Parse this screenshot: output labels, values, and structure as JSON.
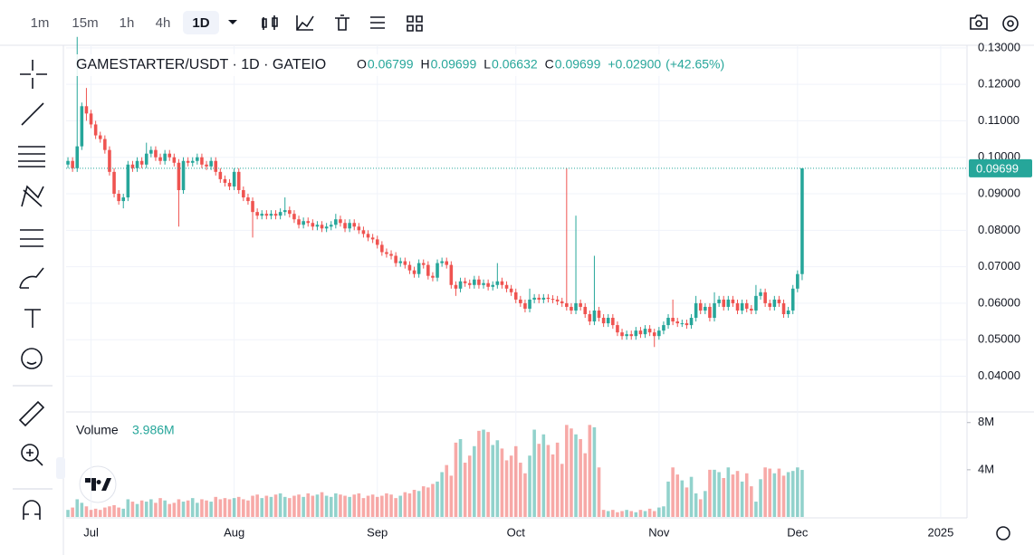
{
  "toolbar": {
    "intervals": [
      "1m",
      "15m",
      "1h",
      "4h",
      "1D"
    ]
  },
  "chart_data": {
    "type": "candlestick",
    "title": "GAMESTARTER/USDT · 1D · GATEIO",
    "ohlc_letters": [
      "O",
      "H",
      "L",
      "C"
    ],
    "change": "+0.02900",
    "change_pct": "(+42.65%)",
    "up_color": "#26a69a",
    "down_color": "#ef5350",
    "xlim": [
      -0.4,
      194.7
    ],
    "xticks": [
      {
        "value": 5,
        "label": "Jul"
      },
      {
        "value": 36,
        "label": "Aug"
      },
      {
        "value": 67,
        "label": "Sep"
      },
      {
        "value": 97,
        "label": "Oct"
      },
      {
        "value": 128,
        "label": "Nov"
      },
      {
        "value": 158,
        "label": "Dec"
      },
      {
        "value": 189,
        "label": "2025"
      }
    ],
    "ylim": [
      0.0302,
      0.1307
    ],
    "yticks": [
      {
        "value": 0.04,
        "label": "0.04000"
      },
      {
        "value": 0.05,
        "label": "0.05000"
      },
      {
        "value": 0.06,
        "label": "0.06000"
      },
      {
        "value": 0.07,
        "label": "0.07000"
      },
      {
        "value": 0.08,
        "label": "0.08000"
      },
      {
        "value": 0.09,
        "label": "0.09000"
      },
      {
        "value": 0.1,
        "label": "0.10000"
      },
      {
        "value": 0.11,
        "label": "0.11000"
      },
      {
        "value": 0.12,
        "label": "0.12000"
      },
      {
        "value": 0.13,
        "label": "0.13000"
      }
    ],
    "grid": true,
    "open": [
      0.098,
      0.099,
      0.097,
      0.103,
      0.114,
      0.112,
      0.109,
      0.106,
      0.105,
      0.102,
      0.096,
      0.09,
      0.088,
      0.089,
      0.098,
      0.097,
      0.099,
      0.098,
      0.101,
      0.102,
      0.1,
      0.099,
      0.101,
      0.1,
      0.0985,
      0.091,
      0.099,
      0.0985,
      0.099,
      0.1,
      0.098,
      0.0975,
      0.099,
      0.096,
      0.094,
      0.093,
      0.092,
      0.096,
      0.091,
      0.089,
      0.088,
      0.085,
      0.084,
      0.0845,
      0.084,
      0.0845,
      0.084,
      0.085,
      0.0855,
      0.0845,
      0.083,
      0.0815,
      0.0825,
      0.082,
      0.081,
      0.0815,
      0.0805,
      0.081,
      0.0815,
      0.083,
      0.082,
      0.0805,
      0.082,
      0.081,
      0.08,
      0.079,
      0.078,
      0.0775,
      0.076,
      0.074,
      0.0735,
      0.073,
      0.071,
      0.0715,
      0.0705,
      0.069,
      0.068,
      0.071,
      0.0705,
      0.0675,
      0.067,
      0.071,
      0.0715,
      0.0705,
      0.065,
      0.064,
      0.066,
      0.0655,
      0.065,
      0.0665,
      0.065,
      0.0655,
      0.0645,
      0.065,
      0.066,
      0.065,
      0.064,
      0.063,
      0.061,
      0.06,
      0.0585,
      0.061,
      0.0615,
      0.061,
      0.0615,
      0.0612,
      0.061,
      0.0605,
      0.06,
      0.059,
      0.058,
      0.06,
      0.059,
      0.057,
      0.055,
      0.058,
      0.056,
      0.0545,
      0.056,
      0.054,
      0.052,
      0.051,
      0.0515,
      0.051,
      0.0525,
      0.0515,
      0.053,
      0.052,
      0.051,
      0.0525,
      0.054,
      0.056,
      0.055,
      0.0545,
      0.0545,
      0.054,
      0.056,
      0.06,
      0.058,
      0.059,
      0.056,
      0.06,
      0.061,
      0.059,
      0.061,
      0.06,
      0.058,
      0.06,
      0.0585,
      0.058,
      0.062,
      0.063,
      0.06,
      0.059,
      0.061,
      0.06,
      0.057,
      0.058,
      0.064,
      0.06799
    ],
    "high": [
      0.1,
      0.1,
      0.133,
      0.115,
      0.119,
      0.113,
      0.11,
      0.107,
      0.106,
      0.103,
      0.097,
      0.091,
      0.09,
      0.099,
      0.099,
      0.1,
      0.1,
      0.104,
      0.103,
      0.103,
      0.101,
      0.102,
      0.102,
      0.101,
      0.0995,
      0.1,
      0.1,
      0.1,
      0.101,
      0.101,
      0.099,
      0.1,
      0.1,
      0.097,
      0.095,
      0.094,
      0.097,
      0.097,
      0.092,
      0.09,
      0.089,
      0.086,
      0.0855,
      0.0855,
      0.0855,
      0.0855,
      0.086,
      0.089,
      0.0865,
      0.0855,
      0.084,
      0.0835,
      0.0835,
      0.083,
      0.0825,
      0.0825,
      0.082,
      0.0825,
      0.0845,
      0.084,
      0.083,
      0.083,
      0.083,
      0.082,
      0.081,
      0.08,
      0.079,
      0.0785,
      0.077,
      0.075,
      0.0745,
      0.074,
      0.0725,
      0.0725,
      0.0715,
      0.07,
      0.072,
      0.072,
      0.0715,
      0.0685,
      0.072,
      0.0725,
      0.0725,
      0.0715,
      0.066,
      0.067,
      0.067,
      0.0665,
      0.0675,
      0.0675,
      0.0665,
      0.0665,
      0.066,
      0.071,
      0.067,
      0.066,
      0.065,
      0.064,
      0.062,
      0.061,
      0.064,
      0.0625,
      0.0625,
      0.0625,
      0.0625,
      0.0622,
      0.062,
      0.0615,
      0.097,
      0.06,
      0.084,
      0.061,
      0.06,
      0.058,
      0.073,
      0.059,
      0.057,
      0.057,
      0.057,
      0.055,
      0.053,
      0.0525,
      0.0525,
      0.0535,
      0.0535,
      0.054,
      0.054,
      0.053,
      0.0535,
      0.055,
      0.057,
      0.061,
      0.056,
      0.0555,
      0.0555,
      0.057,
      0.062,
      0.061,
      0.06,
      0.06,
      0.063,
      0.062,
      0.062,
      0.062,
      0.062,
      0.061,
      0.061,
      0.061,
      0.0595,
      0.065,
      0.064,
      0.064,
      0.061,
      0.062,
      0.062,
      0.061,
      0.059,
      0.065,
      0.069,
      0.09699
    ],
    "low": [
      0.097,
      0.096,
      0.096,
      0.102,
      0.11,
      0.108,
      0.105,
      0.104,
      0.101,
      0.095,
      0.089,
      0.087,
      0.086,
      0.088,
      0.096,
      0.096,
      0.097,
      0.097,
      0.1,
      0.099,
      0.098,
      0.098,
      0.099,
      0.0975,
      0.081,
      0.09,
      0.0975,
      0.0975,
      0.098,
      0.097,
      0.0965,
      0.0965,
      0.095,
      0.093,
      0.092,
      0.091,
      0.091,
      0.09,
      0.088,
      0.087,
      0.078,
      0.083,
      0.083,
      0.083,
      0.083,
      0.083,
      0.083,
      0.084,
      0.0835,
      0.082,
      0.0805,
      0.0805,
      0.081,
      0.08,
      0.08,
      0.0795,
      0.0795,
      0.08,
      0.0805,
      0.081,
      0.0795,
      0.0795,
      0.08,
      0.079,
      0.078,
      0.077,
      0.0765,
      0.075,
      0.073,
      0.0725,
      0.072,
      0.07,
      0.07,
      0.0695,
      0.068,
      0.067,
      0.067,
      0.0695,
      0.0665,
      0.066,
      0.066,
      0.07,
      0.0695,
      0.064,
      0.062,
      0.063,
      0.0645,
      0.064,
      0.064,
      0.064,
      0.064,
      0.0635,
      0.0635,
      0.064,
      0.064,
      0.063,
      0.062,
      0.06,
      0.059,
      0.0575,
      0.0575,
      0.06,
      0.06,
      0.06,
      0.0602,
      0.06,
      0.0595,
      0.059,
      0.058,
      0.057,
      0.057,
      0.058,
      0.056,
      0.054,
      0.054,
      0.055,
      0.0535,
      0.0535,
      0.053,
      0.051,
      0.05,
      0.05,
      0.05,
      0.05,
      0.0505,
      0.0505,
      0.051,
      0.048,
      0.05,
      0.0515,
      0.053,
      0.054,
      0.0535,
      0.0535,
      0.053,
      0.053,
      0.055,
      0.057,
      0.057,
      0.055,
      0.055,
      0.059,
      0.058,
      0.058,
      0.059,
      0.057,
      0.057,
      0.0575,
      0.057,
      0.057,
      0.061,
      0.059,
      0.058,
      0.058,
      0.059,
      0.056,
      0.056,
      0.057,
      0.063,
      0.06632
    ],
    "close": [
      0.099,
      0.097,
      0.103,
      0.114,
      0.112,
      0.109,
      0.106,
      0.105,
      0.102,
      0.096,
      0.09,
      0.088,
      0.089,
      0.098,
      0.097,
      0.099,
      0.098,
      0.101,
      0.102,
      0.1,
      0.099,
      0.101,
      0.1,
      0.0985,
      0.091,
      0.099,
      0.0985,
      0.099,
      0.1,
      0.098,
      0.0975,
      0.099,
      0.096,
      0.094,
      0.093,
      0.092,
      0.096,
      0.091,
      0.089,
      0.088,
      0.085,
      0.084,
      0.0845,
      0.084,
      0.0845,
      0.084,
      0.085,
      0.0855,
      0.0845,
      0.083,
      0.0815,
      0.0825,
      0.082,
      0.081,
      0.0815,
      0.0805,
      0.081,
      0.0815,
      0.083,
      0.082,
      0.0805,
      0.082,
      0.081,
      0.08,
      0.079,
      0.078,
      0.0775,
      0.076,
      0.074,
      0.0735,
      0.073,
      0.071,
      0.0715,
      0.0705,
      0.069,
      0.068,
      0.071,
      0.0705,
      0.0675,
      0.067,
      0.071,
      0.0715,
      0.0705,
      0.065,
      0.064,
      0.066,
      0.0655,
      0.065,
      0.0665,
      0.065,
      0.0655,
      0.0645,
      0.065,
      0.066,
      0.065,
      0.064,
      0.063,
      0.061,
      0.06,
      0.0585,
      0.061,
      0.0615,
      0.061,
      0.0615,
      0.0612,
      0.061,
      0.0605,
      0.06,
      0.059,
      0.058,
      0.06,
      0.059,
      0.057,
      0.055,
      0.058,
      0.056,
      0.0545,
      0.056,
      0.054,
      0.052,
      0.051,
      0.0515,
      0.051,
      0.0525,
      0.0515,
      0.053,
      0.052,
      0.051,
      0.0525,
      0.054,
      0.056,
      0.055,
      0.0545,
      0.0545,
      0.054,
      0.056,
      0.06,
      0.058,
      0.059,
      0.056,
      0.06,
      0.061,
      0.059,
      0.061,
      0.06,
      0.058,
      0.06,
      0.0585,
      0.058,
      0.062,
      0.063,
      0.06,
      0.059,
      0.061,
      0.06,
      0.057,
      0.058,
      0.064,
      0.06799,
      0.09699
    ],
    "volume": {
      "name": "Volume",
      "current_label": "3.986M",
      "ylim": [
        0,
        8.9
      ],
      "yticks": [
        {
          "value": 4,
          "label": "4M"
        },
        {
          "value": 8,
          "label": "8M"
        }
      ],
      "values": [
        0.6,
        0.8,
        1.5,
        1.2,
        0.9,
        0.6,
        0.7,
        0.6,
        0.8,
        0.9,
        1.0,
        0.8,
        0.7,
        1.5,
        1.3,
        1.1,
        1.4,
        1.3,
        1.5,
        1.2,
        1.6,
        1.4,
        1.1,
        1.2,
        1.5,
        1.3,
        1.4,
        1.6,
        1.2,
        1.5,
        1.4,
        1.3,
        1.7,
        1.5,
        1.6,
        1.5,
        1.6,
        1.7,
        1.5,
        1.4,
        1.8,
        1.9,
        1.6,
        1.8,
        1.7,
        1.9,
        2.0,
        1.7,
        1.6,
        1.8,
        1.9,
        1.7,
        2.0,
        1.8,
        1.9,
        2.1,
        1.8,
        1.7,
        2.0,
        1.9,
        1.8,
        1.7,
        1.9,
        2.0,
        1.6,
        1.8,
        1.9,
        1.7,
        1.8,
        2.0,
        1.9,
        1.6,
        1.8,
        2.1,
        2.0,
        2.3,
        2.2,
        2.6,
        2.5,
        2.8,
        3.0,
        3.8,
        4.4,
        3.5,
        6.3,
        6.6,
        4.6,
        5.2,
        6.0,
        7.3,
        7.4,
        7.2,
        6.1,
        6.5,
        5.8,
        4.8,
        5.2,
        6.0,
        4.6,
        3.7,
        5.2,
        7.4,
        6.2,
        7.0,
        6.1,
        5.3,
        6.3,
        4.5,
        7.8,
        7.5,
        7.0,
        6.6,
        5.4,
        7.8,
        7.6,
        4.2,
        0.6,
        0.5,
        0.6,
        0.4,
        0.5,
        0.6,
        0.5,
        0.4,
        0.6,
        0.5,
        0.7,
        0.5,
        0.8,
        0.9,
        3.0,
        4.2,
        3.6,
        3.1,
        2.5,
        3.4,
        2.0,
        1.5,
        2.2,
        4.0,
        4.0,
        3.8,
        3.3,
        4.2,
        3.6,
        3.9,
        3.0,
        3.7,
        2.6,
        1.3,
        3.2,
        4.2,
        4.1,
        3.7,
        4.1,
        3.5,
        3.8,
        3.9,
        4.2,
        3.986
      ]
    }
  }
}
